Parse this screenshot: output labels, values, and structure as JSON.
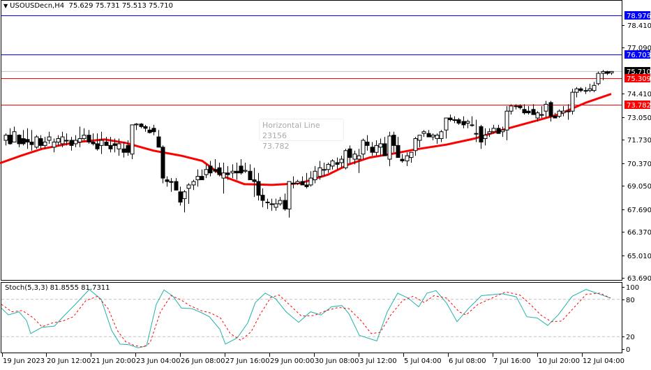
{
  "header": {
    "symbol_timeframe": "USOUSDecn,H4",
    "ohlc": "75.629 75.731 75.513 75.710"
  },
  "tooltip": {
    "line1": "Horizontal Line 23156",
    "line2": "73.782"
  },
  "stochastic": {
    "label": "Stoch(5,3,3) 81.8555 81.7311",
    "levels": [
      "100",
      "80",
      "20",
      "0"
    ]
  },
  "price_axis": {
    "ticks": [
      "78.410",
      "77.090",
      "74.410",
      "73.050",
      "71.730",
      "70.370",
      "69.050",
      "67.690",
      "66.370",
      "65.010",
      "63.690"
    ]
  },
  "price_labels": [
    {
      "value": "78.976",
      "color": "#0000ff"
    },
    {
      "value": "76.703",
      "color": "#0000ff"
    },
    {
      "value": "75.710",
      "color": "#000000"
    },
    {
      "value": "75.309",
      "color": "#ff0000"
    },
    {
      "value": "73.782",
      "color": "#ff0000"
    }
  ],
  "time_axis": {
    "ticks": [
      "19 Jun 2023",
      "20 Jun 12:00",
      "21 Jun 20:00",
      "23 Jun 04:00",
      "26 Jun 08:00",
      "27 Jun 16:00",
      "29 Jun 00:00",
      "30 Jun 08:00",
      "3 Jul 12:00",
      "5 Jul 04:00",
      "6 Jul 08:00",
      "7 Jul 16:00",
      "10 Jul 20:00",
      "12 Jul 04:00"
    ]
  },
  "colors": {
    "ma": "#ff0000",
    "blue_line": "#0000ff",
    "red_line": "#ff0000",
    "bid_line": "#c0c0c0",
    "stoch_main": "#20b2aa",
    "stoch_signal": "#ff0000"
  },
  "chart_data": {
    "type": "candlestick",
    "title": "USOUSDecn,H4",
    "symbol": "USOUSDecn",
    "timeframe": "H4",
    "last_ohlc": {
      "open": 75.629,
      "high": 75.731,
      "low": 75.513,
      "close": 75.71
    },
    "ylim": [
      63.69,
      79.3
    ],
    "horizontal_lines": [
      {
        "price": 78.976,
        "color": "blue"
      },
      {
        "price": 76.703,
        "color": "blue"
      },
      {
        "price": 75.309,
        "color": "red"
      },
      {
        "price": 73.782,
        "color": "red",
        "name": "Horizontal Line 23156"
      }
    ],
    "current_price": 75.71,
    "candles": [
      [
        71.7,
        72.1,
        71.4,
        72.0
      ],
      [
        72.0,
        72.4,
        71.45,
        71.5
      ],
      [
        71.6,
        72.5,
        71.6,
        72.2
      ],
      [
        72.0,
        72.05,
        71.3,
        71.5
      ],
      [
        71.8,
        72.3,
        71.4,
        71.5
      ],
      [
        71.75,
        72.4,
        71.2,
        71.6
      ],
      [
        71.6,
        72.3,
        71.1,
        71.45
      ],
      [
        71.3,
        72.0,
        71.2,
        71.9
      ],
      [
        71.8,
        72.0,
        71.2,
        71.4
      ],
      [
        71.4,
        71.9,
        71.2,
        71.6
      ],
      [
        71.7,
        72.2,
        71.5,
        71.9
      ],
      [
        71.3,
        71.8,
        71.0,
        71.6
      ],
      [
        71.6,
        72.0,
        71.4,
        71.8
      ],
      [
        71.5,
        72.2,
        71.3,
        71.9
      ],
      [
        71.7,
        72.1,
        71.4,
        71.7
      ],
      [
        71.7,
        71.9,
        71.1,
        71.4
      ],
      [
        71.5,
        72.0,
        71.3,
        71.7
      ],
      [
        71.6,
        72.5,
        71.3,
        71.8
      ],
      [
        71.8,
        72.4,
        71.7,
        72.0
      ],
      [
        72.0,
        72.3,
        71.5,
        71.6
      ],
      [
        71.6,
        72.1,
        71.4,
        71.5
      ],
      [
        71.5,
        72.1,
        71.1,
        71.2
      ],
      [
        71.4,
        72.2,
        70.9,
        71.7
      ],
      [
        71.6,
        71.9,
        71.4,
        71.4
      ],
      [
        71.4,
        71.9,
        71.0,
        71.2
      ],
      [
        71.5,
        71.8,
        71.0,
        71.4
      ],
      [
        71.2,
        71.8,
        70.8,
        71.5
      ],
      [
        71.2,
        71.6,
        70.7,
        71.0
      ],
      [
        71.4,
        71.7,
        70.8,
        71.0
      ],
      [
        70.9,
        72.1,
        70.6,
        72.6
      ],
      [
        72.6,
        72.7,
        72.3,
        72.65
      ],
      [
        72.65,
        72.7,
        72.4,
        72.5
      ],
      [
        72.5,
        72.6,
        72.2,
        72.4
      ],
      [
        72.3,
        72.5,
        72.1,
        72.15
      ],
      [
        72.4,
        72.6,
        72.0,
        72.2
      ],
      [
        71.9,
        72.3,
        71.5,
        71.3
      ],
      [
        71.3,
        71.4,
        69.2,
        69.5
      ],
      [
        69.4,
        69.6,
        69.0,
        69.3
      ],
      [
        69.3,
        69.5,
        68.7,
        69.25
      ],
      [
        69.3,
        69.5,
        68.8,
        68.8
      ],
      [
        68.7,
        69.0,
        67.9,
        68.1
      ],
      [
        68.3,
        68.8,
        67.5,
        68.7
      ],
      [
        68.9,
        69.2,
        68.0,
        69.1
      ],
      [
        69.1,
        69.4,
        68.8,
        69.3
      ],
      [
        69.4,
        70.0,
        69.0,
        69.6
      ],
      [
        69.6,
        70.0,
        69.4,
        69.4
      ],
      [
        69.7,
        70.3,
        69.5,
        70.0
      ],
      [
        70.2,
        70.5,
        69.6,
        69.8
      ],
      [
        70.0,
        70.6,
        69.8,
        69.9
      ],
      [
        70.1,
        70.4,
        69.6,
        69.7
      ],
      [
        69.5,
        70.4,
        68.6,
        69.8
      ],
      [
        69.8,
        70.2,
        69.4,
        69.7
      ],
      [
        69.8,
        70.3,
        69.5,
        69.9
      ],
      [
        69.9,
        70.4,
        69.4,
        69.8
      ],
      [
        70.2,
        70.6,
        69.7,
        69.8
      ],
      [
        69.9,
        70.4,
        69.8,
        69.95
      ],
      [
        69.9,
        70.3,
        69.5,
        69.4
      ],
      [
        69.4,
        70.1,
        68.4,
        69.3
      ],
      [
        69.3,
        69.8,
        68.2,
        68.5
      ],
      [
        68.5,
        68.9,
        67.8,
        68.2
      ],
      [
        68.1,
        68.3,
        67.7,
        68.1
      ],
      [
        68.0,
        68.3,
        67.6,
        68.0
      ],
      [
        67.8,
        68.3,
        67.6,
        68.0
      ],
      [
        68.0,
        68.4,
        67.9,
        68.2
      ],
      [
        68.2,
        68.6,
        67.6,
        67.7
      ],
      [
        67.7,
        69.3,
        67.2,
        69.3
      ],
      [
        69.2,
        69.6,
        68.9,
        69.2
      ],
      [
        69.2,
        69.4,
        69.1,
        69.3
      ],
      [
        69.3,
        69.6,
        69.1,
        69.1
      ],
      [
        69.1,
        69.8,
        68.9,
        69.0
      ],
      [
        69.1,
        69.9,
        69.0,
        69.5
      ],
      [
        69.4,
        70.2,
        69.2,
        69.9
      ],
      [
        69.6,
        70.5,
        69.4,
        70.1
      ],
      [
        70.0,
        70.4,
        69.6,
        70.0
      ],
      [
        70.0,
        70.4,
        69.8,
        70.3
      ],
      [
        70.2,
        70.6,
        70.0,
        70.5
      ],
      [
        70.4,
        70.7,
        70.0,
        70.3
      ],
      [
        70.4,
        70.8,
        70.1,
        70.6
      ],
      [
        70.1,
        71.2,
        70.0,
        71.1
      ],
      [
        71.2,
        71.4,
        70.3,
        70.7
      ],
      [
        70.6,
        71.1,
        70.3,
        70.9
      ],
      [
        70.6,
        71.2,
        69.8,
        70.8
      ],
      [
        70.9,
        71.8,
        70.6,
        71.7
      ],
      [
        71.6,
        72.0,
        71.1,
        71.4
      ],
      [
        71.3,
        71.6,
        70.8,
        71.0
      ],
      [
        71.0,
        71.7,
        70.8,
        71.4
      ],
      [
        71.3,
        71.8,
        70.8,
        71.5
      ],
      [
        71.5,
        71.9,
        71.2,
        70.8
      ],
      [
        70.6,
        72.2,
        70.2,
        71.95
      ],
      [
        72.0,
        72.2,
        71.0,
        71.4
      ],
      [
        71.4,
        71.9,
        71.0,
        70.7
      ],
      [
        70.6,
        70.9,
        70.4,
        70.5
      ],
      [
        70.5,
        71.0,
        70.2,
        70.8
      ],
      [
        70.7,
        71.0,
        70.4,
        71.0
      ],
      [
        71.1,
        71.9,
        70.8,
        71.8
      ],
      [
        71.7,
        72.0,
        71.3,
        72.0
      ],
      [
        72.1,
        72.3,
        71.9,
        72.2
      ],
      [
        72.1,
        72.3,
        71.9,
        71.9
      ],
      [
        71.9,
        72.1,
        71.7,
        72.0
      ],
      [
        71.8,
        72.1,
        71.5,
        72.0
      ],
      [
        71.8,
        72.3,
        71.6,
        72.2
      ],
      [
        72.3,
        73.0,
        71.8,
        73.0
      ],
      [
        73.0,
        73.2,
        72.8,
        72.9
      ],
      [
        72.9,
        73.1,
        72.7,
        72.9
      ],
      [
        72.9,
        73.0,
        72.6,
        72.7
      ],
      [
        72.8,
        73.1,
        72.4,
        72.6
      ],
      [
        72.7,
        72.9,
        72.4,
        72.8
      ],
      [
        72.6,
        73.1,
        72.5,
        72.6
      ],
      [
        72.1,
        72.9,
        71.6,
        72.1
      ],
      [
        72.5,
        72.6,
        71.2,
        71.6
      ],
      [
        71.8,
        72.4,
        71.4,
        72.0
      ],
      [
        72.1,
        72.4,
        71.9,
        72.2
      ],
      [
        72.2,
        72.6,
        72.1,
        72.4
      ],
      [
        72.4,
        72.6,
        72.1,
        72.1
      ],
      [
        72.2,
        72.5,
        71.9,
        72.3
      ],
      [
        72.3,
        73.7,
        71.7,
        73.4
      ],
      [
        73.4,
        73.8,
        73.2,
        73.7
      ],
      [
        73.7,
        73.8,
        73.5,
        73.7
      ],
      [
        73.7,
        73.8,
        73.5,
        73.6
      ],
      [
        73.5,
        73.8,
        73.2,
        73.3
      ],
      [
        73.4,
        73.7,
        73.2,
        73.3
      ],
      [
        73.5,
        73.8,
        73.2,
        73.2
      ],
      [
        73.0,
        73.4,
        72.8,
        73.3
      ],
      [
        73.2,
        73.7,
        73.0,
        73.2
      ],
      [
        73.4,
        74.0,
        73.0,
        73.8
      ],
      [
        73.9,
        74.0,
        72.8,
        73.1
      ],
      [
        73.1,
        73.3,
        73.0,
        73.0
      ],
      [
        73.1,
        73.5,
        73.0,
        73.4
      ],
      [
        73.3,
        73.7,
        73.1,
        73.4
      ],
      [
        73.4,
        73.8,
        72.9,
        73.4
      ],
      [
        73.4,
        74.7,
        73.2,
        74.5
      ],
      [
        74.5,
        74.8,
        74.2,
        74.7
      ],
      [
        74.7,
        74.8,
        74.5,
        74.6
      ],
      [
        74.6,
        74.8,
        74.4,
        74.6
      ],
      [
        74.6,
        75.0,
        74.5,
        74.7
      ],
      [
        74.6,
        75.1,
        74.5,
        74.9
      ],
      [
        75.0,
        75.7,
        74.9,
        75.6
      ],
      [
        75.6,
        75.8,
        75.2,
        75.7
      ],
      [
        75.7,
        75.75,
        75.5,
        75.6
      ],
      [
        75.63,
        75.73,
        75.51,
        75.71
      ]
    ],
    "ma_line": {
      "color": "red",
      "points": [
        [
          0,
          70.37
        ],
        [
          30,
          70.8
        ],
        [
          60,
          71.2
        ],
        [
          110,
          71.6
        ],
        [
          150,
          71.75
        ],
        [
          180,
          71.55
        ],
        [
          220,
          71.1
        ],
        [
          260,
          70.8
        ],
        [
          290,
          70.5
        ],
        [
          320,
          69.6
        ],
        [
          350,
          69.15
        ],
        [
          390,
          69.1
        ],
        [
          430,
          69.2
        ],
        [
          470,
          69.7
        ],
        [
          500,
          70.3
        ],
        [
          530,
          70.7
        ],
        [
          560,
          70.9
        ],
        [
          600,
          71.2
        ],
        [
          640,
          71.45
        ],
        [
          680,
          71.8
        ],
        [
          720,
          72.3
        ],
        [
          760,
          72.75
        ],
        [
          800,
          73.2
        ],
        [
          840,
          73.9
        ],
        [
          876,
          74.4
        ]
      ]
    },
    "stochastic": {
      "params": "5,3,3",
      "main": 81.8555,
      "signal": 81.7311,
      "levels": [
        20,
        80
      ],
      "ylim": [
        0,
        100
      ]
    },
    "xlabel": "",
    "ylabel": ""
  }
}
